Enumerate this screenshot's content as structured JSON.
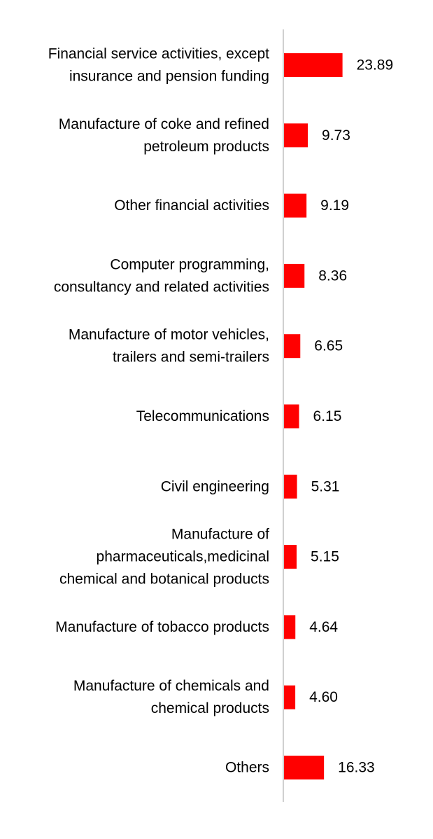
{
  "colors": {
    "bar": "#ff0000",
    "axis": "#d0d0d0",
    "text": "#000000",
    "background": "#ffffff"
  },
  "chart_data": {
    "type": "bar",
    "orientation": "horizontal",
    "title": "",
    "xlabel": "",
    "ylabel": "",
    "grid": false,
    "legend": "none",
    "xlim": [
      0,
      30
    ],
    "categories": [
      [
        "Financial service activities, except",
        "insurance and pension funding"
      ],
      [
        "Manufacture of coke and refined",
        "petroleum products"
      ],
      [
        "Other financial activities"
      ],
      [
        "Computer programming,",
        "consultancy and related activities"
      ],
      [
        "Manufacture of motor vehicles,",
        "trailers and semi-trailers"
      ],
      [
        "Telecommunications"
      ],
      [
        "Civil engineering"
      ],
      [
        "Manufacture of",
        "pharmaceuticals,medicinal",
        "chemical and botanical products"
      ],
      [
        "Manufacture of tobacco products"
      ],
      [
        "Manufacture of chemicals and",
        "chemical products"
      ],
      [
        "Others"
      ]
    ],
    "values": [
      23.89,
      9.73,
      9.19,
      8.36,
      6.65,
      6.15,
      5.31,
      5.15,
      4.64,
      4.6,
      16.33
    ],
    "value_labels": [
      "23.89",
      "9.73",
      "9.19",
      "8.36",
      "6.65",
      "6.15",
      "5.31",
      "5.15",
      "4.64",
      "4.60",
      "16.33"
    ]
  }
}
